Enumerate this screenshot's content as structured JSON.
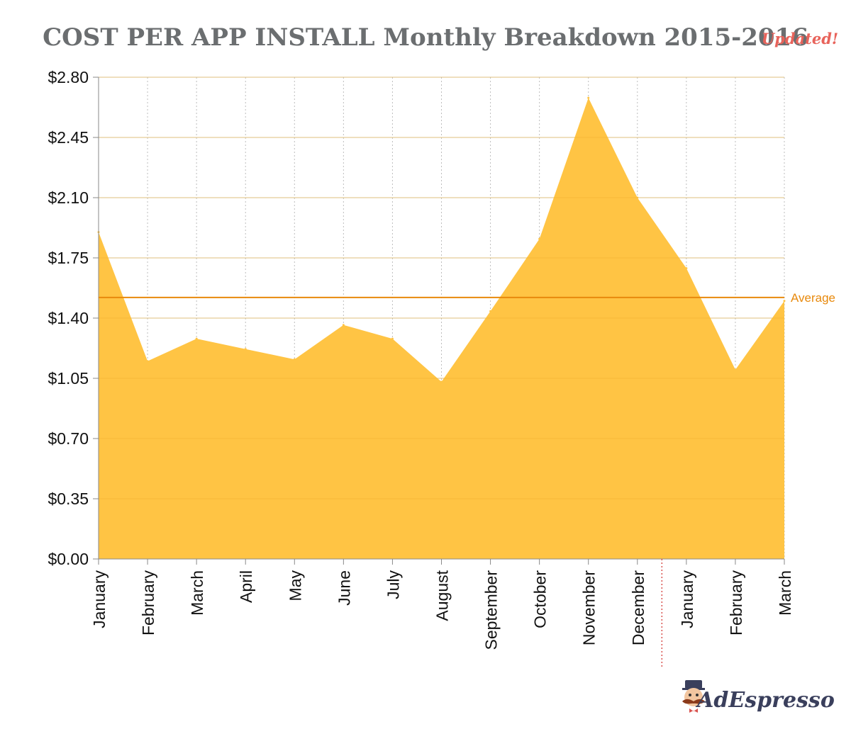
{
  "chart_data": {
    "type": "area",
    "title": "COST PER APP INSTALL Monthly Breakdown 2015-2016",
    "badge": "Updated!",
    "xlabel": "",
    "ylabel": "",
    "categories": [
      "January",
      "February",
      "March",
      "April",
      "May",
      "June",
      "July",
      "August",
      "September",
      "October",
      "November",
      "December",
      "January",
      "February",
      "March"
    ],
    "series": [
      {
        "values": [
          1.9,
          1.15,
          1.28,
          1.22,
          1.16,
          1.36,
          1.28,
          1.03,
          1.44,
          1.86,
          2.68,
          2.1,
          1.69,
          1.1,
          1.5
        ]
      }
    ],
    "y_ticks": [
      "$0.00",
      "$0.35",
      "$0.70",
      "$1.05",
      "$1.40",
      "$1.75",
      "$2.10",
      "$2.45",
      "$2.80"
    ],
    "ylim": [
      0,
      2.8
    ],
    "average": {
      "label": "Average",
      "value": 1.52
    },
    "year_divider_between": [
      "December",
      "January"
    ],
    "grid": "horizontal solid, vertical dotted",
    "colors": {
      "area": "#FFC444",
      "average": "#E8890C",
      "divider": "#D9534F",
      "title": "#6B6E70",
      "badge": "#E8635B"
    }
  },
  "branding": {
    "logo_text": "AdEspresso",
    "mascot_icon": "mustache-mascot-icon"
  }
}
